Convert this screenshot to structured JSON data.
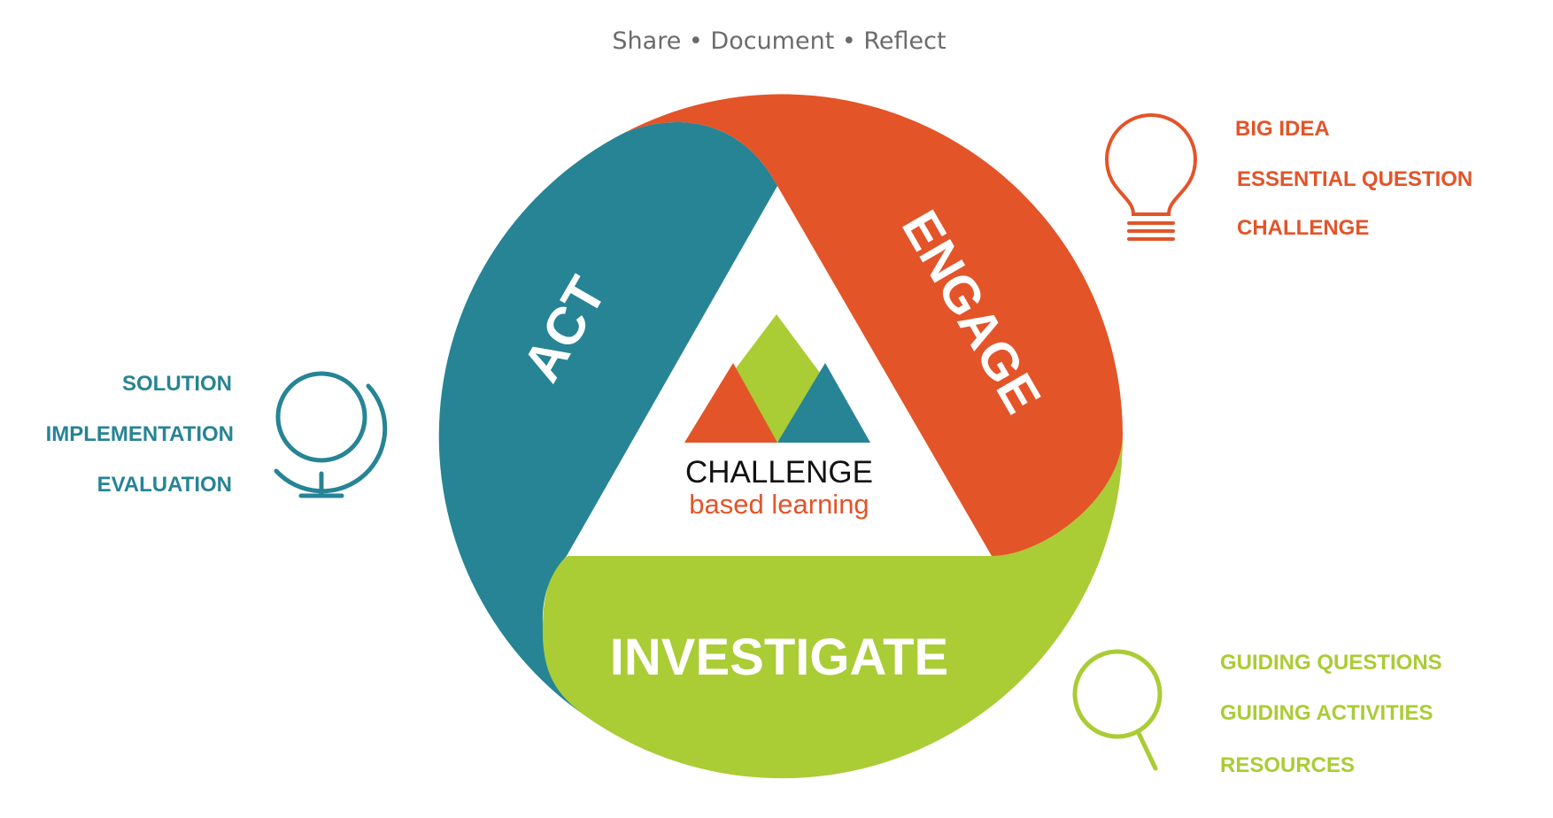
{
  "header": {
    "tagline": "Share • Document • Reflect"
  },
  "phases": {
    "act": {
      "label": "ACT",
      "color": "#268495"
    },
    "engage": {
      "label": "ENGAGE",
      "color": "#E35429"
    },
    "investigate": {
      "label": "INVESTIGATE",
      "color": "#AACC35"
    }
  },
  "logo": {
    "line1": "CHALLENGE",
    "line2": "based learning"
  },
  "lists": {
    "engage": {
      "icon": "lightbulb-icon",
      "items": [
        "BIG IDEA",
        "ESSENTIAL QUESTION",
        "CHALLENGE"
      ]
    },
    "act": {
      "icon": "globe-icon",
      "items": [
        "SOLUTION",
        "IMPLEMENTATION",
        "EVALUATION"
      ]
    },
    "investigate": {
      "icon": "magnifier-icon",
      "items": [
        "GUIDING QUESTIONS",
        "GUIDING ACTIVITIES",
        "RESOURCES"
      ]
    }
  },
  "colors": {
    "text_gray": "#6b6b6b",
    "logo_black": "#111111"
  }
}
